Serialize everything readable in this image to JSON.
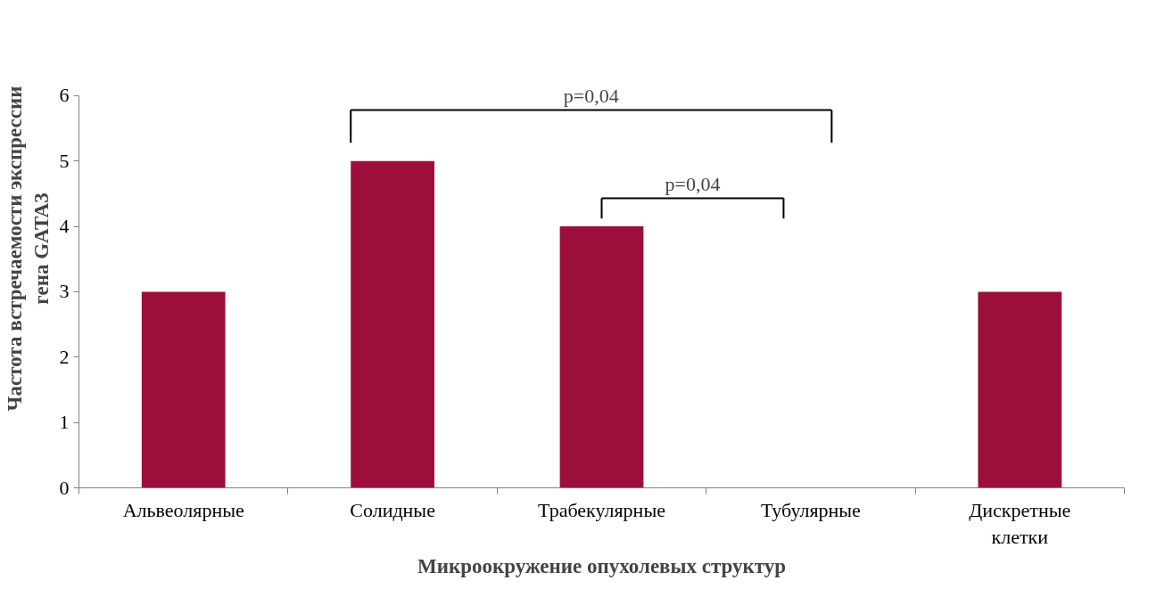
{
  "chart_data": {
    "type": "bar",
    "xlabel": "Микроокружение опухолевых структур",
    "ylabel": "Частота встречаемости экспрессии гена GATA3",
    "categories": [
      "Альвеолярные",
      "Солидные",
      "Трабекулярные",
      "Тубулярные",
      "Дискретные клетки"
    ],
    "values": [
      3,
      5,
      4,
      0,
      3
    ],
    "color": "#9b0f3a",
    "ylim": [
      0,
      6
    ],
    "yticks": [
      0,
      1,
      2,
      3,
      4,
      5,
      6
    ],
    "grid": false,
    "annotations": [
      "p=0,04",
      "p=0,04"
    ]
  }
}
